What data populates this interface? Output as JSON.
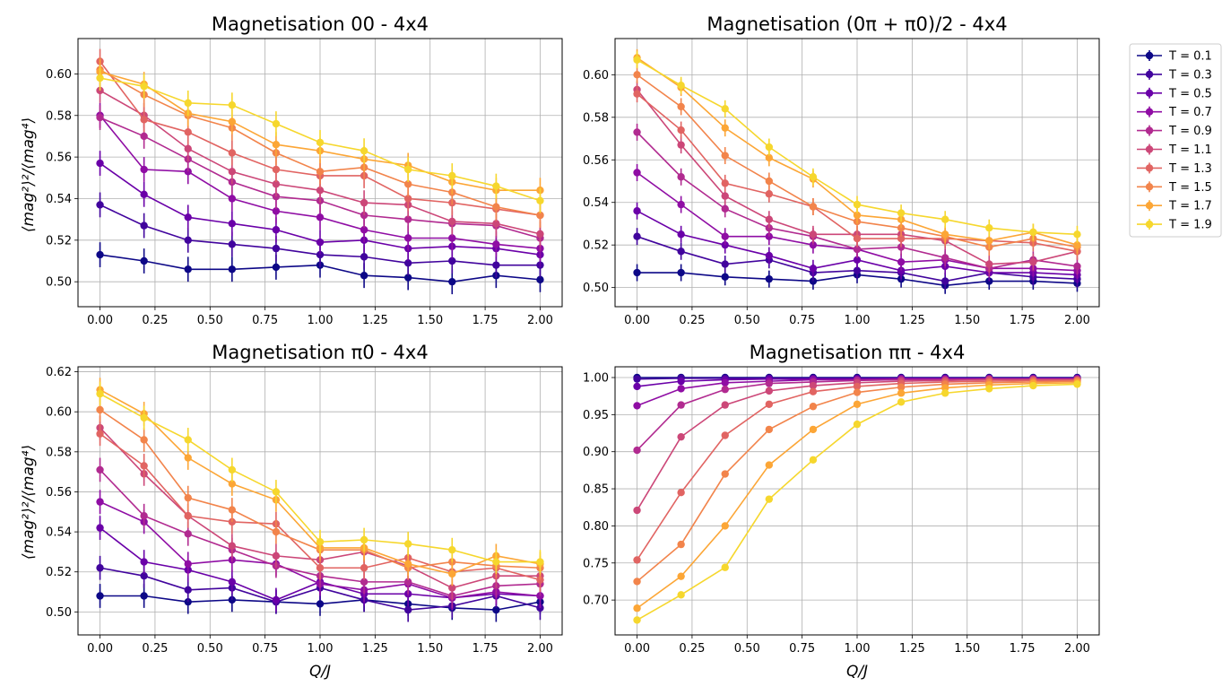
{
  "legend": {
    "entries": [
      "T = 0.1",
      "T = 0.3",
      "T = 0.5",
      "T = 0.7",
      "T = 0.9",
      "T = 1.1",
      "T = 1.3",
      "T = 1.5",
      "T = 1.7",
      "T = 1.9"
    ]
  },
  "colors": [
    "#0d0887",
    "#41049d",
    "#6a00a8",
    "#8f0da4",
    "#b12a90",
    "#cc4778",
    "#e16462",
    "#f2844b",
    "#fca636",
    "#f0f921"
  ],
  "colors_rendered": [
    "#0d0887",
    "#41049d",
    "#6a00a8",
    "#8f0da4",
    "#b12a90",
    "#cc4778",
    "#e16462",
    "#f2844b",
    "#fca636",
    "#f6d72d"
  ],
  "chart_data": [
    {
      "type": "line",
      "title": "Magnetisation 00 - 4x4",
      "xlabel": "",
      "ylabel": "⟨mag²⟩²/⟨mag⁴⟩",
      "xlim": [
        -0.1,
        2.1
      ],
      "ylim": [
        0.488,
        0.617
      ],
      "xticks": [
        "0.00",
        "0.25",
        "0.50",
        "0.75",
        "1.00",
        "1.25",
        "1.50",
        "1.75",
        "2.00"
      ],
      "yticks": [
        "0.50",
        "0.52",
        "0.54",
        "0.56",
        "0.58",
        "0.60"
      ],
      "x": [
        0,
        0.2,
        0.4,
        0.6,
        0.8,
        1.0,
        1.2,
        1.4,
        1.6,
        1.8,
        2.0
      ],
      "error": 0.006,
      "series": [
        {
          "name": "T = 0.1",
          "values": [
            0.513,
            0.51,
            0.506,
            0.506,
            0.507,
            0.508,
            0.503,
            0.502,
            0.5,
            0.503,
            0.501
          ]
        },
        {
          "name": "T = 0.3",
          "values": [
            0.537,
            0.527,
            0.52,
            0.518,
            0.516,
            0.513,
            0.512,
            0.509,
            0.51,
            0.508,
            0.508
          ]
        },
        {
          "name": "T = 0.5",
          "values": [
            0.557,
            0.542,
            0.531,
            0.528,
            0.525,
            0.519,
            0.52,
            0.516,
            0.517,
            0.516,
            0.513
          ]
        },
        {
          "name": "T = 0.7",
          "values": [
            0.58,
            0.554,
            0.553,
            0.54,
            0.534,
            0.531,
            0.525,
            0.521,
            0.521,
            0.518,
            0.516
          ]
        },
        {
          "name": "T = 0.9",
          "values": [
            0.579,
            0.57,
            0.559,
            0.548,
            0.541,
            0.539,
            0.532,
            0.53,
            0.528,
            0.527,
            0.521
          ]
        },
        {
          "name": "T = 1.1",
          "values": [
            0.592,
            0.58,
            0.564,
            0.553,
            0.547,
            0.544,
            0.538,
            0.537,
            0.529,
            0.528,
            0.523
          ]
        },
        {
          "name": "T = 1.3",
          "values": [
            0.606,
            0.578,
            0.572,
            0.562,
            0.554,
            0.551,
            0.551,
            0.54,
            0.538,
            0.535,
            0.532
          ]
        },
        {
          "name": "T = 1.5",
          "values": [
            0.602,
            0.59,
            0.58,
            0.574,
            0.562,
            0.553,
            0.555,
            0.547,
            0.543,
            0.536,
            0.532
          ]
        },
        {
          "name": "T = 1.7",
          "values": [
            0.601,
            0.595,
            0.581,
            0.577,
            0.566,
            0.563,
            0.559,
            0.556,
            0.548,
            0.544,
            0.544
          ]
        },
        {
          "name": "T = 1.9",
          "values": [
            0.598,
            0.594,
            0.586,
            0.585,
            0.576,
            0.567,
            0.563,
            0.554,
            0.551,
            0.546,
            0.539
          ]
        }
      ]
    },
    {
      "type": "line",
      "title": "Magnetisation (0π + π0)/2 - 4x4",
      "xlabel": "",
      "ylabel": "",
      "xlim": [
        -0.1,
        2.1
      ],
      "ylim": [
        0.491,
        0.617
      ],
      "xticks": [
        "0.00",
        "0.25",
        "0.50",
        "0.75",
        "1.00",
        "1.25",
        "1.50",
        "1.75",
        "2.00"
      ],
      "yticks": [
        "0.50",
        "0.52",
        "0.54",
        "0.56",
        "0.58",
        "0.60"
      ],
      "x": [
        0,
        0.2,
        0.4,
        0.6,
        0.8,
        1.0,
        1.2,
        1.4,
        1.6,
        1.8,
        2.0
      ],
      "error": 0.004,
      "series": [
        {
          "name": "T = 0.1",
          "values": [
            0.507,
            0.507,
            0.505,
            0.504,
            0.503,
            0.506,
            0.504,
            0.501,
            0.503,
            0.503,
            0.502
          ]
        },
        {
          "name": "T = 0.3",
          "values": [
            0.524,
            0.517,
            0.511,
            0.513,
            0.507,
            0.508,
            0.507,
            0.503,
            0.507,
            0.505,
            0.504
          ]
        },
        {
          "name": "T = 0.5",
          "values": [
            0.536,
            0.525,
            0.52,
            0.515,
            0.509,
            0.513,
            0.508,
            0.51,
            0.507,
            0.507,
            0.506
          ]
        },
        {
          "name": "T = 0.7",
          "values": [
            0.554,
            0.539,
            0.524,
            0.524,
            0.52,
            0.518,
            0.512,
            0.513,
            0.509,
            0.509,
            0.508
          ]
        },
        {
          "name": "T = 0.9",
          "values": [
            0.573,
            0.552,
            0.537,
            0.528,
            0.524,
            0.518,
            0.519,
            0.514,
            0.509,
            0.513,
            0.51
          ]
        },
        {
          "name": "T = 1.1",
          "values": [
            0.593,
            0.567,
            0.543,
            0.532,
            0.525,
            0.525,
            0.525,
            0.522,
            0.511,
            0.512,
            0.517
          ]
        },
        {
          "name": "T = 1.3",
          "values": [
            0.591,
            0.574,
            0.549,
            0.544,
            0.538,
            0.523,
            0.523,
            0.523,
            0.522,
            0.521,
            0.517
          ]
        },
        {
          "name": "T = 1.5",
          "values": [
            0.6,
            0.585,
            0.562,
            0.55,
            0.538,
            0.531,
            0.528,
            0.524,
            0.519,
            0.523,
            0.519
          ]
        },
        {
          "name": "T = 1.7",
          "values": [
            0.608,
            0.594,
            0.575,
            0.561,
            0.551,
            0.534,
            0.532,
            0.525,
            0.522,
            0.526,
            0.52
          ]
        },
        {
          "name": "T = 1.9",
          "values": [
            0.607,
            0.595,
            0.584,
            0.566,
            0.552,
            0.539,
            0.535,
            0.532,
            0.528,
            0.526,
            0.525
          ]
        }
      ]
    },
    {
      "type": "line",
      "title": "Magnetisation π0 - 4x4",
      "xlabel": "Q/J",
      "ylabel": "⟨mag²⟩²/⟨mag⁴⟩",
      "xlim": [
        -0.1,
        2.1
      ],
      "ylim": [
        0.4885,
        0.6225
      ],
      "xticks": [
        "0.00",
        "0.25",
        "0.50",
        "0.75",
        "1.00",
        "1.25",
        "1.50",
        "1.75",
        "2.00"
      ],
      "yticks": [
        "0.50",
        "0.52",
        "0.54",
        "0.56",
        "0.58",
        "0.60",
        "0.62"
      ],
      "x": [
        0,
        0.2,
        0.4,
        0.6,
        0.8,
        1.0,
        1.2,
        1.4,
        1.6,
        1.8,
        2.0
      ],
      "error": 0.006,
      "series": [
        {
          "name": "T = 0.1",
          "values": [
            0.508,
            0.508,
            0.505,
            0.506,
            0.505,
            0.504,
            0.506,
            0.504,
            0.502,
            0.501,
            0.505
          ]
        },
        {
          "name": "T = 0.3",
          "values": [
            0.522,
            0.518,
            0.511,
            0.512,
            0.505,
            0.512,
            0.506,
            0.501,
            0.503,
            0.508,
            0.502
          ]
        },
        {
          "name": "T = 0.5",
          "values": [
            0.542,
            0.525,
            0.521,
            0.515,
            0.506,
            0.515,
            0.509,
            0.509,
            0.507,
            0.509,
            0.508
          ]
        },
        {
          "name": "T = 0.7",
          "values": [
            0.555,
            0.545,
            0.524,
            0.526,
            0.524,
            0.514,
            0.511,
            0.514,
            0.507,
            0.51,
            0.508
          ]
        },
        {
          "name": "T = 0.9",
          "values": [
            0.571,
            0.548,
            0.539,
            0.531,
            0.523,
            0.518,
            0.515,
            0.515,
            0.508,
            0.513,
            0.514
          ]
        },
        {
          "name": "T = 1.1",
          "values": [
            0.592,
            0.569,
            0.548,
            0.533,
            0.528,
            0.526,
            0.53,
            0.523,
            0.512,
            0.518,
            0.518
          ]
        },
        {
          "name": "T = 1.3",
          "values": [
            0.589,
            0.573,
            0.548,
            0.545,
            0.544,
            0.522,
            0.522,
            0.527,
            0.52,
            0.522,
            0.516
          ]
        },
        {
          "name": "T = 1.5",
          "values": [
            0.601,
            0.586,
            0.557,
            0.551,
            0.54,
            0.531,
            0.531,
            0.522,
            0.525,
            0.523,
            0.522
          ]
        },
        {
          "name": "T = 1.7",
          "values": [
            0.611,
            0.599,
            0.577,
            0.564,
            0.556,
            0.532,
            0.532,
            0.524,
            0.519,
            0.528,
            0.524
          ]
        },
        {
          "name": "T = 1.9",
          "values": [
            0.609,
            0.597,
            0.586,
            0.571,
            0.56,
            0.535,
            0.536,
            0.534,
            0.531,
            0.525,
            0.525
          ]
        }
      ]
    },
    {
      "type": "line",
      "title": "Magnetisation ππ - 4x4",
      "xlabel": "Q/J",
      "ylabel": "",
      "xlim": [
        -0.1,
        2.1
      ],
      "ylim": [
        0.653,
        1.0145
      ],
      "xticks": [
        "0.00",
        "0.25",
        "0.50",
        "0.75",
        "1.00",
        "1.25",
        "1.50",
        "1.75",
        "2.00"
      ],
      "yticks": [
        "0.70",
        "0.75",
        "0.80",
        "0.85",
        "0.90",
        "0.95",
        "1.00"
      ],
      "x": [
        0,
        0.2,
        0.4,
        0.6,
        0.8,
        1.0,
        1.2,
        1.4,
        1.6,
        1.8,
        2.0
      ],
      "error": 0.002,
      "series": [
        {
          "name": "T = 0.1",
          "values": [
            1.0,
            1.0,
            1.0,
            1.0,
            1.0,
            1.0,
            1.0,
            1.0,
            1.0,
            1.0,
            1.0
          ]
        },
        {
          "name": "T = 0.3",
          "values": [
            0.998,
            0.999,
            0.999,
            0.999,
            0.999,
            0.999,
            0.999,
            0.999,
            0.999,
            0.999,
            0.999
          ]
        },
        {
          "name": "T = 0.5",
          "values": [
            0.988,
            0.995,
            0.997,
            0.998,
            0.998,
            0.998,
            0.999,
            0.999,
            0.999,
            0.999,
            0.999
          ]
        },
        {
          "name": "T = 0.7",
          "values": [
            0.962,
            0.985,
            0.993,
            0.995,
            0.997,
            0.997,
            0.998,
            0.998,
            0.998,
            0.998,
            0.998
          ]
        },
        {
          "name": "T = 0.9",
          "values": [
            0.902,
            0.963,
            0.984,
            0.992,
            0.994,
            0.996,
            0.997,
            0.997,
            0.998,
            0.998,
            0.998
          ]
        },
        {
          "name": "T = 1.1",
          "values": [
            0.821,
            0.92,
            0.963,
            0.982,
            0.989,
            0.993,
            0.995,
            0.996,
            0.997,
            0.997,
            0.997
          ]
        },
        {
          "name": "T = 1.3",
          "values": [
            0.754,
            0.845,
            0.922,
            0.964,
            0.981,
            0.988,
            0.992,
            0.994,
            0.995,
            0.996,
            0.996
          ]
        },
        {
          "name": "T = 1.5",
          "values": [
            0.725,
            0.775,
            0.87,
            0.93,
            0.961,
            0.98,
            0.987,
            0.991,
            0.993,
            0.994,
            0.995
          ]
        },
        {
          "name": "T = 1.7",
          "values": [
            0.689,
            0.732,
            0.8,
            0.882,
            0.93,
            0.964,
            0.979,
            0.986,
            0.99,
            0.992,
            0.993
          ]
        },
        {
          "name": "T = 1.9",
          "values": [
            0.673,
            0.707,
            0.744,
            0.836,
            0.889,
            0.937,
            0.967,
            0.979,
            0.985,
            0.989,
            0.991
          ]
        }
      ]
    }
  ]
}
